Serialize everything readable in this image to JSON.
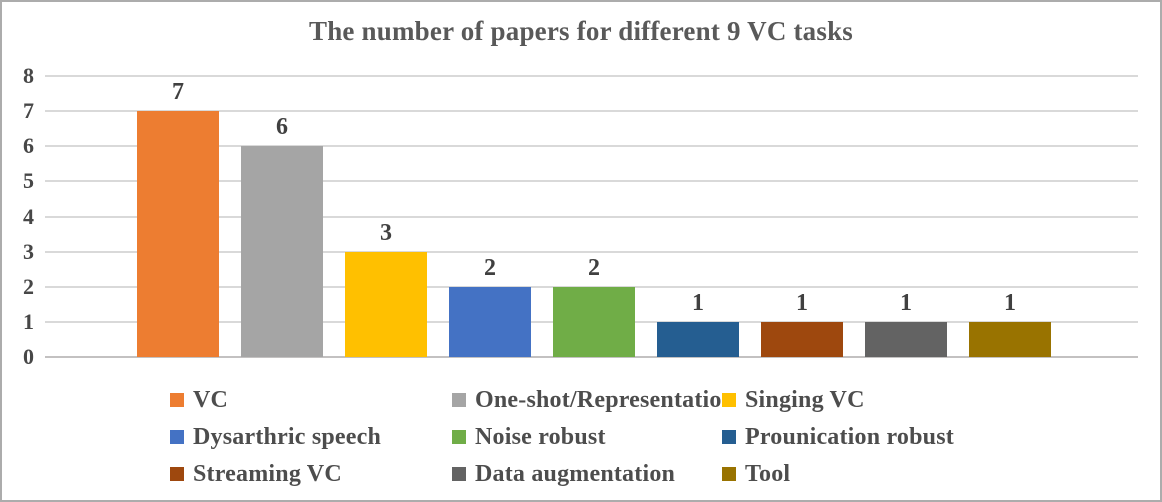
{
  "chart_data": {
    "type": "bar",
    "title": "The number of papers for different 9 VC tasks",
    "categories": [
      "VC",
      "One-shot/Representation",
      "Singing VC",
      "Dysarthric speech",
      "Noise robust",
      "Prounication robust",
      "Streaming VC",
      "Data augmentation",
      "Tool"
    ],
    "values": [
      7,
      6,
      3,
      2,
      2,
      1,
      1,
      1,
      1
    ],
    "data_labels": [
      "7",
      "6",
      "3",
      "2",
      "2",
      "1",
      "1",
      "1",
      "1"
    ],
    "series_colors": [
      "#ED7D31",
      "#A5A5A5",
      "#FFC000",
      "#4472C4",
      "#70AD47",
      "#255E91",
      "#9E480E",
      "#636363",
      "#997300"
    ],
    "yticks": [
      "0",
      "1",
      "2",
      "3",
      "4",
      "5",
      "6",
      "7",
      "8"
    ],
    "ylim": [
      0,
      8
    ],
    "xlabel": "",
    "ylabel": "",
    "grid": true,
    "legend_position": "bottom",
    "legend_rows": [
      [
        "VC",
        "One-shot/Representation",
        "Singing VC"
      ],
      [
        "Dysarthric speech",
        "Noise robust",
        "Prounication robust"
      ],
      [
        "Streaming VC",
        "Data augmentation",
        "Tool"
      ]
    ],
    "colors": {
      "title_text": "#595959",
      "axis_text": "#474747",
      "data_label_text": "#404040",
      "legend_text": "#4d4d4d",
      "gridline": "#d9d9d9",
      "axis_line": "#c3c1c1",
      "chart_border": "#acacac",
      "background": "#ffffff"
    }
  }
}
